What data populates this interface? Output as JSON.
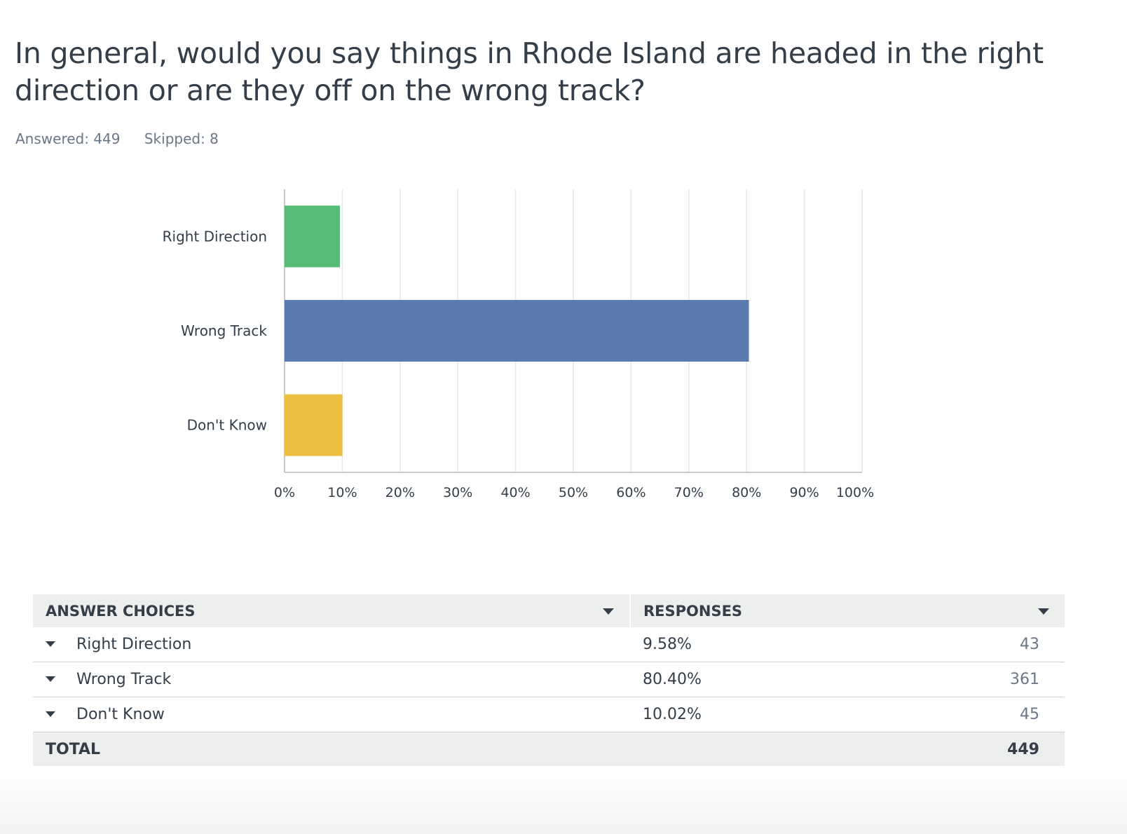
{
  "question": "In general, would you say things in Rhode Island are headed in the right direction or are they off on the wrong track?",
  "stats": {
    "answered": "Answered: 449",
    "skipped": "Skipped: 8"
  },
  "chart_data": {
    "type": "bar",
    "orientation": "horizontal",
    "categories": [
      "Right Direction",
      "Wrong Track",
      "Don't Know"
    ],
    "values": [
      9.58,
      80.4,
      10.02
    ],
    "colors": [
      "#57bb75",
      "#5b7bb0",
      "#ecbf42"
    ],
    "xlim": [
      0,
      100
    ],
    "xticks": [
      "0%",
      "10%",
      "20%",
      "30%",
      "40%",
      "50%",
      "60%",
      "70%",
      "80%",
      "90%",
      "100%"
    ],
    "grid": true
  },
  "table": {
    "headers": [
      "ANSWER CHOICES",
      "RESPONSES"
    ],
    "rows": [
      {
        "choice": "Right Direction",
        "percent": "9.58%",
        "count": "43"
      },
      {
        "choice": "Wrong Track",
        "percent": "80.40%",
        "count": "361"
      },
      {
        "choice": "Don't Know",
        "percent": "10.02%",
        "count": "45"
      }
    ],
    "total_label": "TOTAL",
    "total_count": "449"
  }
}
